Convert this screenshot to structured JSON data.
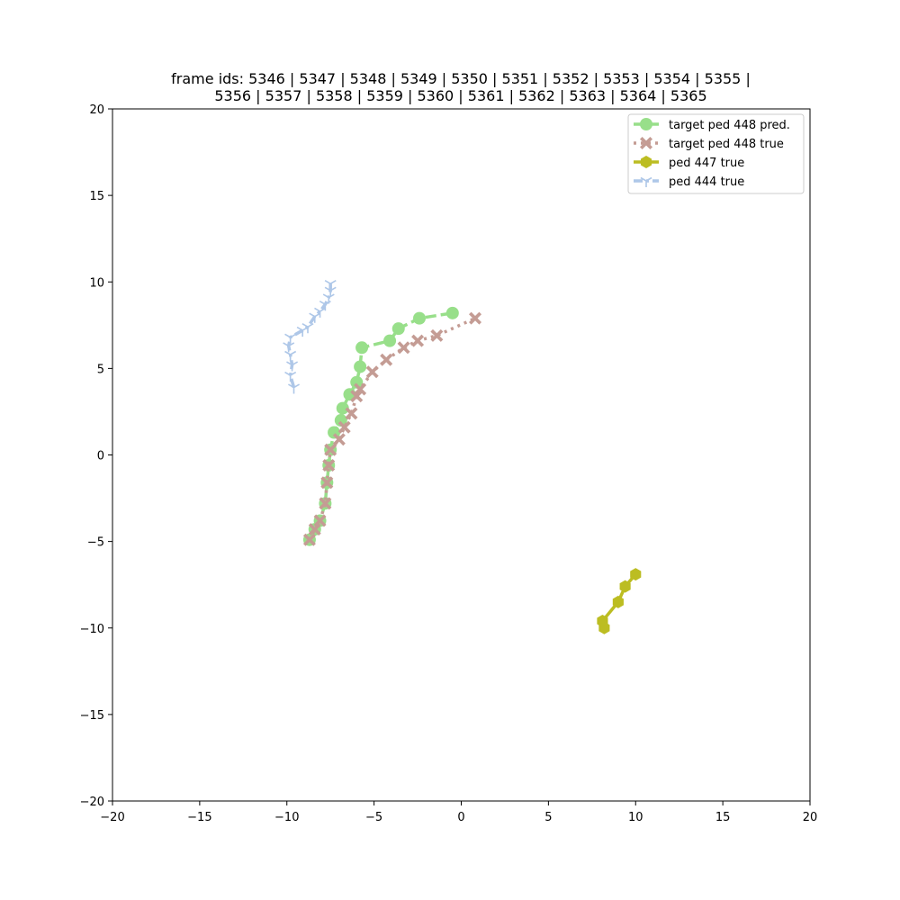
{
  "chart_data": {
    "type": "scatter",
    "title_lines": [
      "frame ids: 5346 | 5347 | 5348 | 5349 | 5350 | 5351 | 5352 | 5353 | 5354 | 5355 |",
      "5356 | 5357 | 5358 | 5359 | 5360 | 5361 | 5362 | 5363 | 5364 | 5365"
    ],
    "xlabel": "",
    "ylabel": "",
    "xlim": [
      -20,
      20
    ],
    "ylim": [
      -20,
      20
    ],
    "x_ticks": [
      -20,
      -15,
      -10,
      -5,
      0,
      5,
      10,
      15,
      20
    ],
    "y_ticks": [
      -20,
      -15,
      -10,
      -5,
      0,
      5,
      10,
      15,
      20
    ],
    "x_tick_labels": [
      "−20",
      "−15",
      "−10",
      "−5",
      "0",
      "5",
      "10",
      "15",
      "20"
    ],
    "y_tick_labels": [
      "−20",
      "−15",
      "−10",
      "−5",
      "0",
      "5",
      "10",
      "15",
      "20"
    ],
    "grid": false,
    "legend_position": "top-right",
    "series": [
      {
        "name": "target ped 448 pred.",
        "color": "#98df8a",
        "marker": "circle",
        "linestyle": "dashed",
        "points": [
          [
            -8.7,
            -4.9
          ],
          [
            -8.4,
            -4.3
          ],
          [
            -8.1,
            -3.8
          ],
          [
            -7.8,
            -2.8
          ],
          [
            -7.7,
            -1.6
          ],
          [
            -7.6,
            -0.6
          ],
          [
            -7.5,
            0.3
          ],
          [
            -7.3,
            1.3
          ],
          [
            -6.9,
            2.0
          ],
          [
            -6.8,
            2.7
          ],
          [
            -6.4,
            3.5
          ],
          [
            -6.0,
            4.2
          ],
          [
            -5.8,
            5.1
          ],
          [
            -5.7,
            6.2
          ],
          [
            -4.1,
            6.6
          ],
          [
            -3.6,
            7.3
          ],
          [
            -2.4,
            7.9
          ],
          [
            -0.5,
            8.2
          ]
        ]
      },
      {
        "name": "target ped 448 true",
        "color": "#c49c94",
        "marker": "x-filled",
        "linestyle": "dotted",
        "points": [
          [
            -8.7,
            -4.9
          ],
          [
            -8.4,
            -4.3
          ],
          [
            -8.1,
            -3.8
          ],
          [
            -7.8,
            -2.8
          ],
          [
            -7.7,
            -1.6
          ],
          [
            -7.6,
            -0.6
          ],
          [
            -7.5,
            0.3
          ],
          [
            -7.0,
            0.9
          ],
          [
            -6.7,
            1.6
          ],
          [
            -6.3,
            2.4
          ],
          [
            -6.0,
            3.4
          ],
          [
            -5.8,
            3.8
          ],
          [
            -5.1,
            4.8
          ],
          [
            -4.3,
            5.5
          ],
          [
            -3.3,
            6.2
          ],
          [
            -2.5,
            6.6
          ],
          [
            -1.4,
            6.9
          ],
          [
            0.8,
            7.9
          ]
        ]
      },
      {
        "name": "ped 447 true",
        "color": "#bcbd22",
        "marker": "hexagon",
        "linestyle": "solid",
        "points": [
          [
            8.2,
            -10.0
          ],
          [
            8.1,
            -9.6
          ],
          [
            9.0,
            -8.5
          ],
          [
            9.4,
            -7.6
          ],
          [
            10.0,
            -6.9
          ]
        ]
      },
      {
        "name": "ped 444 true",
        "color": "#aec7e8",
        "marker": "tri",
        "linestyle": "dashdot",
        "points": [
          [
            -9.6,
            3.9
          ],
          [
            -9.8,
            4.6
          ],
          [
            -9.7,
            5.2
          ],
          [
            -9.8,
            5.8
          ],
          [
            -9.9,
            6.3
          ],
          [
            -9.8,
            6.8
          ],
          [
            -9.1,
            7.2
          ],
          [
            -8.8,
            7.4
          ],
          [
            -8.4,
            8.0
          ],
          [
            -8.1,
            8.3
          ],
          [
            -7.8,
            8.7
          ],
          [
            -7.6,
            9.1
          ],
          [
            -7.5,
            9.5
          ],
          [
            -7.5,
            9.9
          ]
        ]
      }
    ]
  }
}
